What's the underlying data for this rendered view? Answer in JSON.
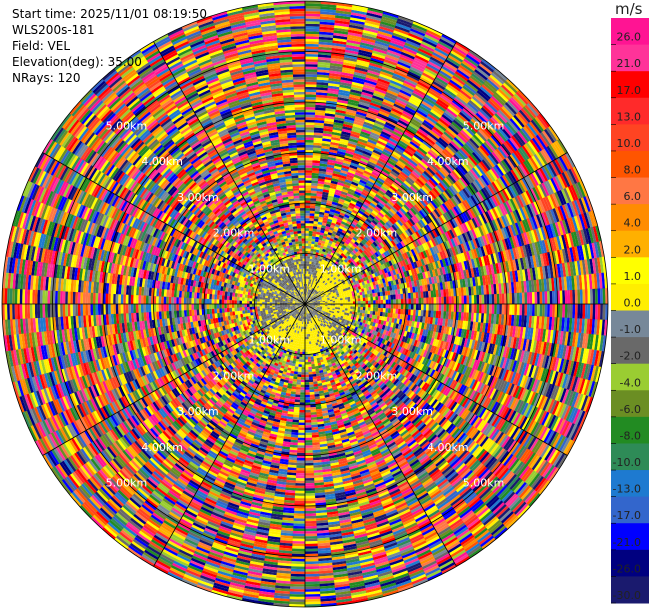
{
  "info": {
    "start_time": "Start time: 2025/11/01 08:19:50",
    "station": "WLS200s-181",
    "field": "Field: VEL",
    "elevation": "Elevation(deg): 35.00",
    "nrays": "NRays: 120"
  },
  "colorbar": {
    "unit": "m/s",
    "labels": [
      "26.0",
      "21.0",
      "17.0",
      "13.0",
      "10.0",
      "8.0",
      "6.0",
      "4.0",
      "2.0",
      "1.0",
      "0.0",
      "-1.0",
      "-2.0",
      "-4.0",
      "-6.0",
      "-8.0",
      "-10.0",
      "-13.0",
      "-17.0",
      "-21.0",
      "-26.0",
      "-30.0"
    ],
    "colors": [
      "#ff1493",
      "#ff3399",
      "#ff0000",
      "#ff2a2a",
      "#ff4422",
      "#ff5500",
      "#ff7744",
      "#ff8c00",
      "#ffb000",
      "#ffff00",
      "#ffee00",
      "#778899",
      "#696969",
      "#9acd32",
      "#6b8e23",
      "#228b22",
      "#2e8b57",
      "#1e7ad0",
      "#3366cc",
      "#0000ff",
      "#000080",
      "#1a1a6e"
    ]
  },
  "chart_data": {
    "type": "ppi_polar",
    "field": "VEL",
    "units": "m/s",
    "elevation_deg": 35.0,
    "n_rays": 120,
    "range_rings_km": [
      1.0,
      2.0,
      3.0,
      4.0,
      5.0
    ],
    "ring_labels": [
      "1.00km",
      "2.00km",
      "3.00km",
      "4.00km",
      "5.00km"
    ],
    "max_range_km": 6.0,
    "inner_region_km": 0.95,
    "inner_dominant_values": [
      0.0,
      -2.0,
      4.0
    ],
    "outer_region": "noisy / random values across full scale",
    "spokes_deg": [
      0,
      30,
      60,
      90,
      120,
      150,
      180,
      210,
      240,
      270,
      300,
      330
    ]
  }
}
